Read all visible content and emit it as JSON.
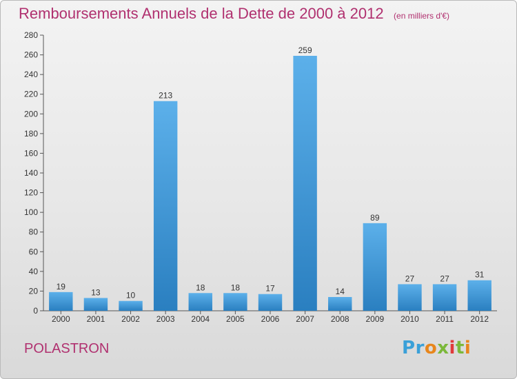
{
  "title": "Remboursements Annuels de la Dette de 2000 à 2012",
  "subtitle": "(en milliers d'€)",
  "commune": "POLASTRON",
  "logo": {
    "letters": [
      "P",
      "r",
      "o",
      "x",
      "i",
      "t",
      "i"
    ],
    "colors": [
      "#3aa0d8",
      "#3aa0d8",
      "#e8861c",
      "#7bb83a",
      "#e03a3a",
      "#7bb83a",
      "#e8861c"
    ]
  },
  "colors": {
    "title": "#b0306f",
    "bar_light": "#5aaee8",
    "bar_dark": "#2a7fc0"
  },
  "chart_data": {
    "type": "bar",
    "title": "Remboursements Annuels de la Dette de 2000 à 2012",
    "xlabel": "",
    "ylabel": "",
    "categories": [
      "2000",
      "2001",
      "2002",
      "2003",
      "2004",
      "2005",
      "2006",
      "2007",
      "2008",
      "2009",
      "2010",
      "2011",
      "2012"
    ],
    "values": [
      19,
      13,
      10,
      213,
      18,
      18,
      17,
      259,
      14,
      89,
      27,
      27,
      31
    ],
    "ylim": [
      0,
      280
    ],
    "yticks": [
      0,
      20,
      40,
      60,
      80,
      100,
      120,
      140,
      160,
      180,
      200,
      220,
      240,
      260,
      280
    ],
    "grid": false,
    "data_labels": true
  }
}
